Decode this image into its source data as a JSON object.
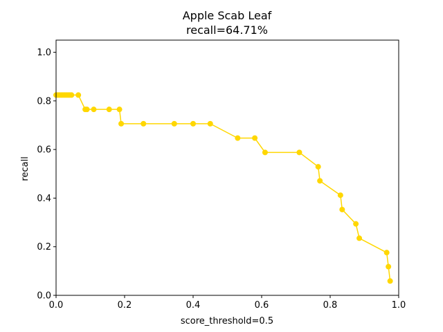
{
  "chart_data": {
    "type": "line",
    "title": "Apple Scab Leaf",
    "subtitle": "recall=64.71%",
    "xlabel": "score_threshold=0.5",
    "ylabel": "recall",
    "xlim": [
      0.0,
      1.0
    ],
    "ylim": [
      0.0,
      1.05
    ],
    "xticks": [
      "0.0",
      "0.2",
      "0.4",
      "0.6",
      "0.8",
      "1.0"
    ],
    "yticks": [
      "0.0",
      "0.2",
      "0.4",
      "0.6",
      "0.8",
      "1.0"
    ],
    "grid": false,
    "series": [
      {
        "color": "#ffd700",
        "x": [
          0.0,
          0.005,
          0.01,
          0.015,
          0.02,
          0.025,
          0.03,
          0.035,
          0.04,
          0.045,
          0.065,
          0.085,
          0.09,
          0.11,
          0.155,
          0.185,
          0.19,
          0.255,
          0.345,
          0.4,
          0.45,
          0.53,
          0.58,
          0.61,
          0.71,
          0.765,
          0.77,
          0.83,
          0.835,
          0.875,
          0.885,
          0.965,
          0.97,
          0.975
        ],
        "y": [
          0.824,
          0.824,
          0.824,
          0.824,
          0.824,
          0.824,
          0.824,
          0.824,
          0.824,
          0.824,
          0.824,
          0.765,
          0.765,
          0.765,
          0.765,
          0.765,
          0.706,
          0.706,
          0.706,
          0.706,
          0.706,
          0.647,
          0.647,
          0.588,
          0.588,
          0.529,
          0.471,
          0.412,
          0.353,
          0.294,
          0.235,
          0.176,
          0.118,
          0.059
        ]
      }
    ]
  }
}
